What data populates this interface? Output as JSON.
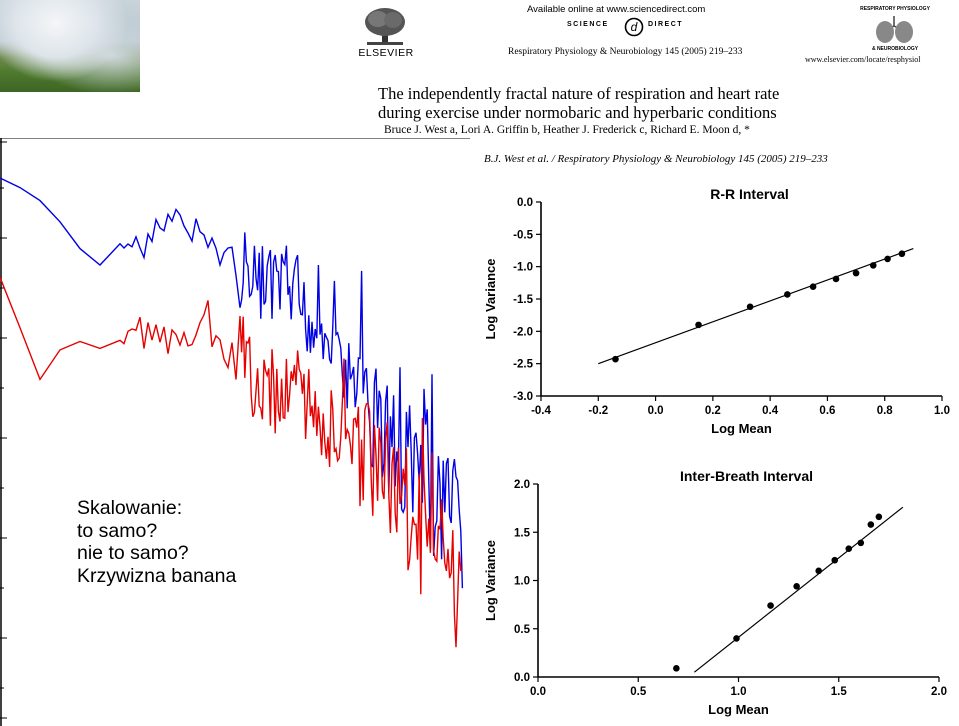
{
  "header": {
    "available_online": "Available online at www.sciencedirect.com",
    "sd_logo_left": "SCIENCE",
    "sd_logo_right": "DIRECT",
    "elsevier": "ELSEVIER",
    "journal_line": "Respiratory Physiology & Neurobiology 145 (2005) 219–233",
    "cover_title_top": "RESPIRATORY PHYSIOLOGY",
    "cover_title_bottom": "& NEUROBIOLOGY",
    "locate_url": "www.elsevier.com/locate/resphysiol"
  },
  "paper": {
    "title_line1": "The independently fractal nature of respiration and heart rate",
    "title_line2": "during exercise under normobaric and hyperbaric conditions",
    "authors": "Bruce J. West a, Lori A. Griffin b, Heather J. Frederick c, Richard E. Moon d, *",
    "running_header": "B.J. West et al. / Respiratory Physiology & Neurobiology 145 (2005) 219–233"
  },
  "caption": {
    "line1": "Skalowanie:",
    "line2": "to samo?",
    "line3": "nie to samo?",
    "line4": "Krzywizna banana"
  },
  "colors": {
    "blue_series": "#0000e6",
    "red_series": "#e60000"
  },
  "chart_data": [
    {
      "type": "line",
      "title": "",
      "xlabel": "",
      "ylabel": "",
      "scale": "log-log spectra",
      "series": [
        {
          "name": "blue",
          "color": "#0000e6",
          "x": [
            0,
            42,
            98,
            135,
            160,
            180,
            200,
            230,
            260,
            290,
            320,
            350,
            380,
            410,
            440,
            463
          ],
          "y": [
            178,
            202,
            270,
            245,
            230,
            225,
            235,
            260,
            285,
            300,
            330,
            380,
            420,
            470,
            500,
            540
          ]
        },
        {
          "name": "red",
          "color": "#e60000",
          "x": [
            0,
            40,
            70,
            100,
            130,
            160,
            200,
            230,
            260,
            290,
            320,
            350,
            380,
            410,
            440,
            463
          ],
          "y": [
            278,
            378,
            335,
            355,
            335,
            345,
            330,
            360,
            385,
            400,
            420,
            440,
            470,
            520,
            560,
            610
          ]
        }
      ]
    },
    {
      "type": "scatter",
      "title": "R-R Interval",
      "xlabel": "Log Mean",
      "ylabel": "Log Variance",
      "xlim": [
        -0.4,
        1.0
      ],
      "ylim": [
        -3.0,
        0.0
      ],
      "xticks": [
        "-0.4",
        "-0.2",
        "0.0",
        "0.2",
        "0.4",
        "0.6",
        "0.8",
        "1.0"
      ],
      "yticks": [
        "0.0",
        "-0.5",
        "-1.0",
        "-1.5",
        "-2.0",
        "-2.5",
        "-3.0"
      ],
      "points": [
        [
          -0.14,
          -2.43
        ],
        [
          0.15,
          -1.9
        ],
        [
          0.33,
          -1.62
        ],
        [
          0.46,
          -1.43
        ],
        [
          0.55,
          -1.31
        ],
        [
          0.63,
          -1.19
        ],
        [
          0.7,
          -1.1
        ],
        [
          0.76,
          -0.98
        ],
        [
          0.81,
          -0.88
        ],
        [
          0.86,
          -0.8
        ]
      ],
      "fit": [
        [
          -0.2,
          -2.5
        ],
        [
          0.9,
          -0.72
        ]
      ]
    },
    {
      "type": "scatter",
      "title": "Inter-Breath Interval",
      "xlabel": "Log Mean",
      "ylabel": "Log Variance",
      "xlim": [
        0.0,
        2.0
      ],
      "ylim": [
        0.0,
        2.0
      ],
      "xticks": [
        "0.0",
        "0.5",
        "1.0",
        "1.5",
        "2.0"
      ],
      "yticks": [
        "2.0",
        "1.5",
        "1.0",
        "0.5",
        "0.0"
      ],
      "points": [
        [
          0.69,
          0.09
        ],
        [
          0.99,
          0.4
        ],
        [
          1.16,
          0.74
        ],
        [
          1.29,
          0.94
        ],
        [
          1.4,
          1.1
        ],
        [
          1.48,
          1.21
        ],
        [
          1.55,
          1.33
        ],
        [
          1.61,
          1.39
        ],
        [
          1.66,
          1.58
        ],
        [
          1.7,
          1.66
        ]
      ],
      "fit": [
        [
          0.78,
          0.05
        ],
        [
          1.82,
          1.76
        ]
      ]
    }
  ]
}
